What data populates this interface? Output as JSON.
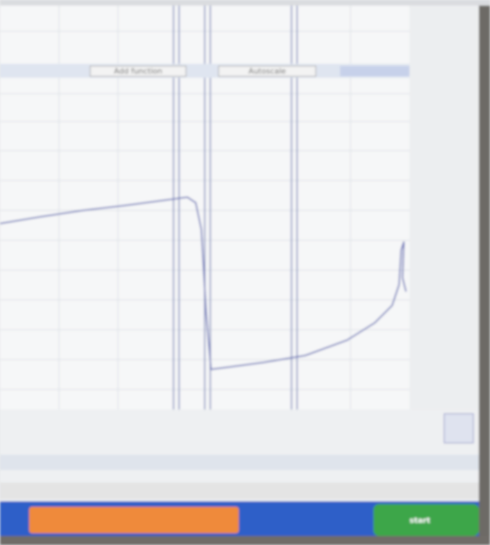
{
  "toolbar": {
    "add_function": "Add function",
    "autoscale": "Autoscale"
  },
  "taskbar": {
    "start": "start"
  }
}
